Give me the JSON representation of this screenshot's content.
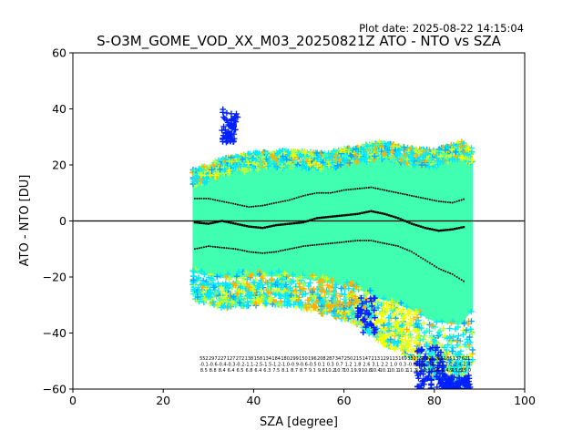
{
  "chart_data": {
    "type": "scatter",
    "title": "S-O3M_GOME_VOD_XX_M03_20250821Z ATO - NTO vs SZA",
    "subtitle": "Plot date: 2025-08-22 14:15:04",
    "xlabel": "SZA [degree]",
    "ylabel": "ATO - NTO [DU]",
    "xlim": [
      0,
      100
    ],
    "ylim": [
      -60,
      60
    ],
    "xticks": [
      0,
      20,
      40,
      60,
      80,
      100
    ],
    "yticks": [
      -60,
      -40,
      -20,
      0,
      20,
      40,
      60
    ],
    "grid": false,
    "legend": "none",
    "marker": "+",
    "colors": {
      "dense_core": "#40ffb0",
      "cyan": "#00e8ff",
      "sky": "#00a8ff",
      "blue": "#0020ff",
      "lime": "#b8ff40",
      "yellow": "#f0ff00",
      "orange": "#ffb000",
      "zero_line": "#000000",
      "mean_line": "#000000"
    },
    "series": [
      {
        "role": "bias",
        "x": [
          27,
          30,
          33,
          36,
          39,
          42,
          45,
          48,
          51,
          54,
          57,
          60,
          63,
          66,
          69,
          72,
          75,
          78,
          81,
          84,
          87
        ],
        "y": [
          -0.5,
          -1,
          0,
          -1,
          -2,
          -2.5,
          -1.5,
          -1,
          -0.5,
          1,
          1.5,
          2,
          2.5,
          3.5,
          2.5,
          1,
          -1,
          -2.5,
          -3.5,
          -3,
          -2
        ]
      },
      {
        "role": "bias + stddev",
        "x": [
          27,
          30,
          33,
          36,
          39,
          42,
          45,
          48,
          51,
          54,
          57,
          60,
          63,
          66,
          69,
          72,
          75,
          78,
          81,
          84,
          87
        ],
        "y": [
          8,
          8,
          7,
          6,
          5,
          5.5,
          6.5,
          7.5,
          9,
          10,
          10,
          11,
          11.5,
          12,
          11,
          10,
          9,
          8,
          7,
          6.5,
          8
        ]
      },
      {
        "role": "bias - stddev",
        "x": [
          27,
          30,
          33,
          36,
          39,
          42,
          45,
          48,
          51,
          54,
          57,
          60,
          63,
          66,
          69,
          72,
          75,
          78,
          81,
          84,
          87
        ],
        "y": [
          -10,
          -9,
          -9.5,
          -10,
          -11,
          -11.5,
          -11,
          -10,
          -9,
          -8.5,
          -8,
          -7.5,
          -7,
          -7,
          -8,
          -9,
          -11,
          -14,
          -17,
          -19,
          -22
        ]
      }
    ],
    "point_cloud": {
      "x_range": [
        26.5,
        88.5
      ],
      "upper_envelope": [
        [
          27,
          20
        ],
        [
          33,
          24
        ],
        [
          40,
          26
        ],
        [
          48,
          27
        ],
        [
          55,
          26
        ],
        [
          62,
          28
        ],
        [
          68,
          30
        ],
        [
          74,
          28
        ],
        [
          80,
          27
        ],
        [
          86,
          30
        ],
        [
          88,
          28
        ]
      ],
      "lower_envelope": [
        [
          27,
          -30
        ],
        [
          33,
          -33
        ],
        [
          40,
          -32
        ],
        [
          48,
          -32
        ],
        [
          55,
          -35
        ],
        [
          62,
          -38
        ],
        [
          68,
          -45
        ],
        [
          74,
          -50
        ],
        [
          80,
          -58
        ],
        [
          86,
          -60
        ],
        [
          88,
          -52
        ]
      ],
      "blue_outliers_upper": [
        [
          35,
          28,
          40
        ]
      ],
      "blue_outliers_lower": [
        [
          79,
          -60,
          -45
        ],
        [
          85,
          -60,
          -55
        ]
      ]
    },
    "annotations": {
      "x_positions": [
        29,
        31,
        33,
        35,
        37,
        39,
        41,
        43,
        45,
        47,
        49,
        51,
        53,
        55,
        57,
        59,
        61,
        63,
        65,
        67,
        69,
        71,
        73,
        75,
        77,
        79,
        81,
        83,
        85,
        87
      ],
      "rows": [
        [
          "552",
          "297",
          "227",
          "127",
          "272",
          "138",
          "158",
          "134",
          "184",
          "180",
          "299",
          "150",
          "196",
          "208",
          "287",
          "347",
          "250",
          "215",
          "147",
          "213",
          "129",
          "113",
          "169",
          "332",
          "157",
          "101",
          "203",
          "185",
          "137",
          "621"
        ],
        [
          "-0.1",
          "-0.6",
          "-0.4",
          "-0.3",
          "-0.2",
          "-1.1",
          "-2.5",
          "-1.5",
          "-1.2",
          "-1.0",
          "-0.9",
          "-0.6",
          "-0.5",
          "0.1",
          "0.3",
          "0.7",
          "1.2",
          "1.8",
          "2.6",
          "3.1",
          "2.2",
          "1.0",
          "0.3",
          "-0.8",
          "-1.5",
          "-2.6",
          "-3.2",
          "-3.0",
          "-2.4",
          "-1.4"
        ],
        [
          "8.5",
          "8.8",
          "8.4",
          "6.4",
          "6.5",
          "6.8",
          "6.4",
          "6.3",
          "7.5",
          "8.1",
          "8.7",
          "8.7",
          "9.1",
          "9.8",
          "10.2",
          "10.7",
          "10.1",
          "9.9",
          "10.8",
          "10.4",
          "10.1",
          "10.1",
          "10.1",
          "11.2",
          "12.0",
          "13.0",
          "14.1",
          "14.9",
          "15.5",
          "15.0"
        ]
      ]
    }
  }
}
